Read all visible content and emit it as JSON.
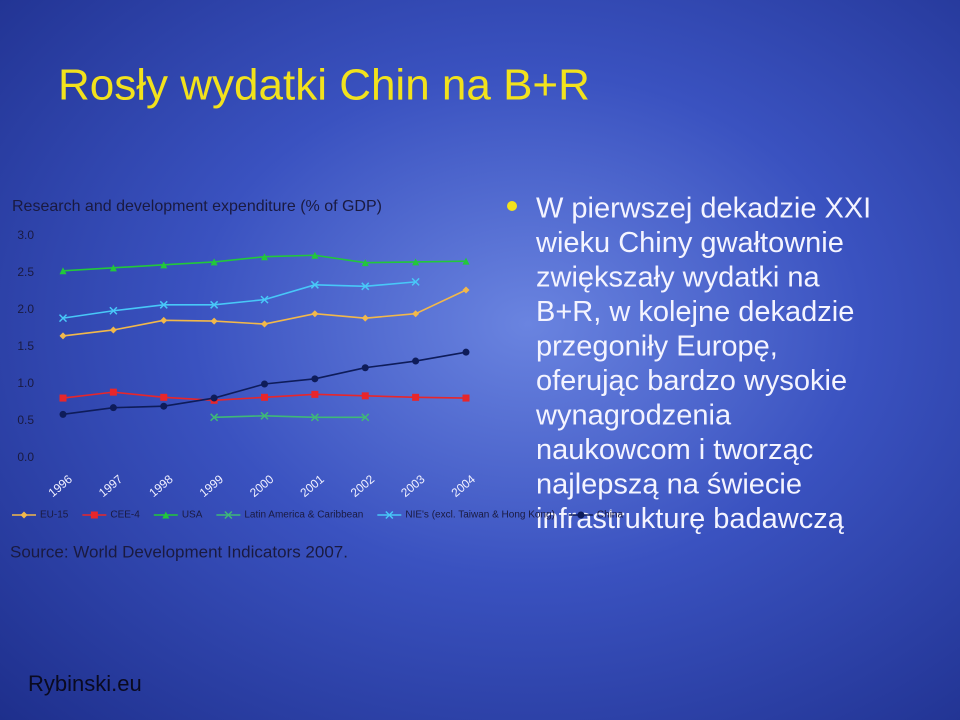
{
  "title": "Rosły wydatki Chin na B+R",
  "chart_data": {
    "type": "line",
    "title": "Research and development expenditure (% of GDP)",
    "categories": [
      "1996",
      "1997",
      "1998",
      "1999",
      "2000",
      "2001",
      "2002",
      "2003",
      "2004"
    ],
    "series": [
      {
        "name": "EU-15",
        "color": "#f2b84a",
        "values": [
          1.65,
          1.73,
          1.86,
          1.85,
          1.81,
          1.95,
          1.89,
          1.95,
          2.27
        ]
      },
      {
        "name": "CEE-4",
        "color": "#e8262a",
        "values": [
          0.81,
          0.89,
          0.82,
          0.78,
          0.82,
          0.86,
          0.84,
          0.82,
          0.81
        ]
      },
      {
        "name": "USA",
        "color": "#22c83a",
        "values": [
          2.53,
          2.57,
          2.61,
          2.65,
          2.72,
          2.74,
          2.64,
          2.65,
          2.66
        ]
      },
      {
        "name": "Latin America & Caribbean",
        "color": "#3fb878",
        "values": [
          null,
          null,
          null,
          0.55,
          0.57,
          0.55,
          0.55,
          null,
          null
        ]
      },
      {
        "name": "NIE's (excl. Taiwan & Hong Kong)",
        "color": "#48c8f8",
        "values": [
          1.89,
          1.99,
          2.07,
          2.07,
          2.14,
          2.34,
          2.32,
          2.38,
          null
        ]
      },
      {
        "name": "China",
        "color": "#0e1c5a",
        "values": [
          0.59,
          0.68,
          0.7,
          0.81,
          1.0,
          1.07,
          1.22,
          1.31,
          1.43
        ]
      }
    ],
    "ylim": [
      0,
      3
    ],
    "yticks": [
      {
        "value": 0,
        "label": "0.0"
      },
      0.5,
      {
        "value": 1,
        "label": "1.0"
      },
      1.5,
      {
        "value": 2,
        "label": "2.0"
      },
      2.5,
      {
        "value": 3,
        "label": "3.0"
      }
    ],
    "grid": false
  },
  "source": "Source: World Development Indicators 2007.",
  "bullet_lines": [
    "W pierwszej dekadzie XXI",
    "wieku Chiny gwałtownie",
    "zwiększały wydatki na",
    "B+R, w kolejne dekadzie",
    "przegoniły Europę,",
    "oferując bardzo wysokie",
    "wynagrodzenia",
    "naukowcom i tworząc",
    "najlepszą na świecie",
    "infrastrukturę badawczą"
  ],
  "footer": "Rybinski.eu"
}
